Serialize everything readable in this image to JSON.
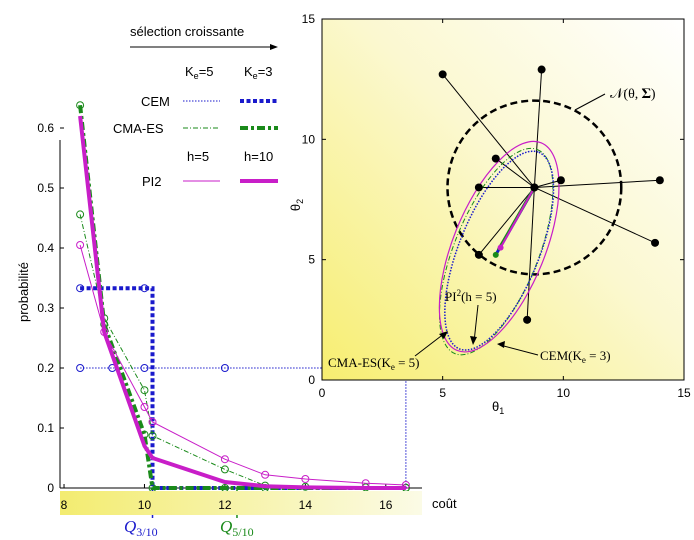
{
  "left_chart": {
    "ylabel": "probabilité",
    "xlabel": "coût",
    "xticks": [
      "8",
      "10",
      "12",
      "14",
      "16"
    ],
    "yticks": [
      "0",
      "0.1",
      "0.2",
      "0.3",
      "0.4",
      "0.5",
      "0.6"
    ],
    "q_labels": [
      {
        "base": "Q",
        "sub": "3/10",
        "color": "#1a1acc"
      },
      {
        "base": "Q",
        "sub": "5/10",
        "color": "#1a8a1a"
      }
    ]
  },
  "legend": {
    "title": "sélection croissante",
    "ke5": "K",
    "ke5_sub": "e",
    "ke5_val": "=5",
    "ke3": "K",
    "ke3_sub": "e",
    "ke3_val": "=3",
    "h5": "h=5",
    "h10": "h=10",
    "cem": "CEM",
    "cmaes": "CMA-ES",
    "pi2": "PI2"
  },
  "right_chart": {
    "xlabel": "θ",
    "xlabel_sub": "1",
    "ylabel": "θ",
    "ylabel_sub": "2",
    "xticks": [
      "0",
      "5",
      "10",
      "15"
    ],
    "yticks": [
      "0",
      "5",
      "10",
      "15"
    ],
    "ann_normal": "𝒩(θ, 𝚺)",
    "ann_pi2": "PI",
    "ann_pi2_sup": "2",
    "ann_pi2_tail": "(h = 5)",
    "ann_cmaes": "CMA-ES(K",
    "ann_cmaes_sub": "e",
    "ann_cmaes_tail": " = 5)",
    "ann_cem": "CEM(K",
    "ann_cem_sub": "e",
    "ann_cem_tail": " = 3)"
  },
  "colors": {
    "cem": "#1a1acc",
    "cmaes": "#1a8a1a",
    "pi2": "#c81ec8",
    "band": "#f4f29a",
    "black": "#000000"
  },
  "chart_data": [
    {
      "type": "line",
      "xlabel": "coût",
      "ylabel": "probabilité",
      "xlim": [
        7.9,
        16.9
      ],
      "ylim": [
        0,
        0.65
      ],
      "series": [
        {
          "name": "CEM K_e=5",
          "style": "dotted-thin",
          "x": [
            8.4,
            10,
            10,
            12,
            12,
            16.5,
            16.5
          ],
          "y": [
            0.2,
            0.2,
            0.2,
            0.2,
            0.2,
            0.2,
            0
          ],
          "points": [
            [
              8.4,
              0.2
            ],
            [
              10,
              0.2
            ],
            [
              12,
              0.2
            ],
            [
              9.2,
              0.2
            ]
          ]
        },
        {
          "name": "CEM K_e=3",
          "style": "dotted-thick",
          "x": [
            8.4,
            8.4,
            10.2,
            10.2,
            16.3
          ],
          "y": [
            0.333,
            0.333,
            0.333,
            0,
            0
          ],
          "points": [
            [
              8.4,
              0.333
            ],
            [
              10,
              0.333
            ]
          ]
        },
        {
          "name": "CMA-ES K_e=5",
          "style": "dashdot-thin",
          "x": [
            8.4,
            9.0,
            10.0,
            10.2,
            12.0,
            13.0,
            14.0,
            15.5,
            16.5
          ],
          "y": [
            0.456,
            0.283,
            0.163,
            0.087,
            0.031,
            0.004,
            0.002,
            0.001,
            0.0005
          ]
        },
        {
          "name": "CMA-ES K_e=3",
          "style": "dashdot-thick",
          "x": [
            8.4,
            9.0,
            10.0,
            10.2,
            12.0,
            13.0,
            16.5
          ],
          "y": [
            0.638,
            0.273,
            0.089,
            0.0,
            0.0,
            0.0,
            0.0
          ]
        },
        {
          "name": "PI2 h=5",
          "style": "solid-thin",
          "x": [
            8.4,
            9.0,
            10.0,
            10.2,
            12.0,
            13.0,
            14.0,
            15.5,
            16.5
          ],
          "y": [
            0.405,
            0.26,
            0.135,
            0.11,
            0.048,
            0.022,
            0.015,
            0.008,
            0.005
          ]
        },
        {
          "name": "PI2 h=10",
          "style": "solid-thick",
          "x": [
            8.4,
            9.0,
            10.0,
            10.2,
            12.0,
            13.0,
            14.0,
            15.5,
            16.5
          ],
          "y": [
            0.62,
            0.26,
            0.07,
            0.05,
            0.01,
            0.003,
            0.001,
            0.0,
            0.0
          ]
        }
      ]
    },
    {
      "type": "scatter",
      "xlabel": "θ1",
      "ylabel": "θ2",
      "xlim": [
        0,
        15
      ],
      "ylim": [
        0,
        15
      ],
      "center": [
        8.8,
        8.0
      ],
      "samples": [
        [
          5,
          12.7
        ],
        [
          7.2,
          9.2
        ],
        [
          6.5,
          8.0
        ],
        [
          8.8,
          8.0
        ],
        [
          9.9,
          8.3
        ],
        [
          14,
          8.3
        ],
        [
          9.1,
          12.9
        ],
        [
          13.8,
          5.7
        ],
        [
          6.5,
          5.2
        ],
        [
          8.5,
          2.5
        ]
      ],
      "normal_circle_radius": 3.6
    }
  ]
}
